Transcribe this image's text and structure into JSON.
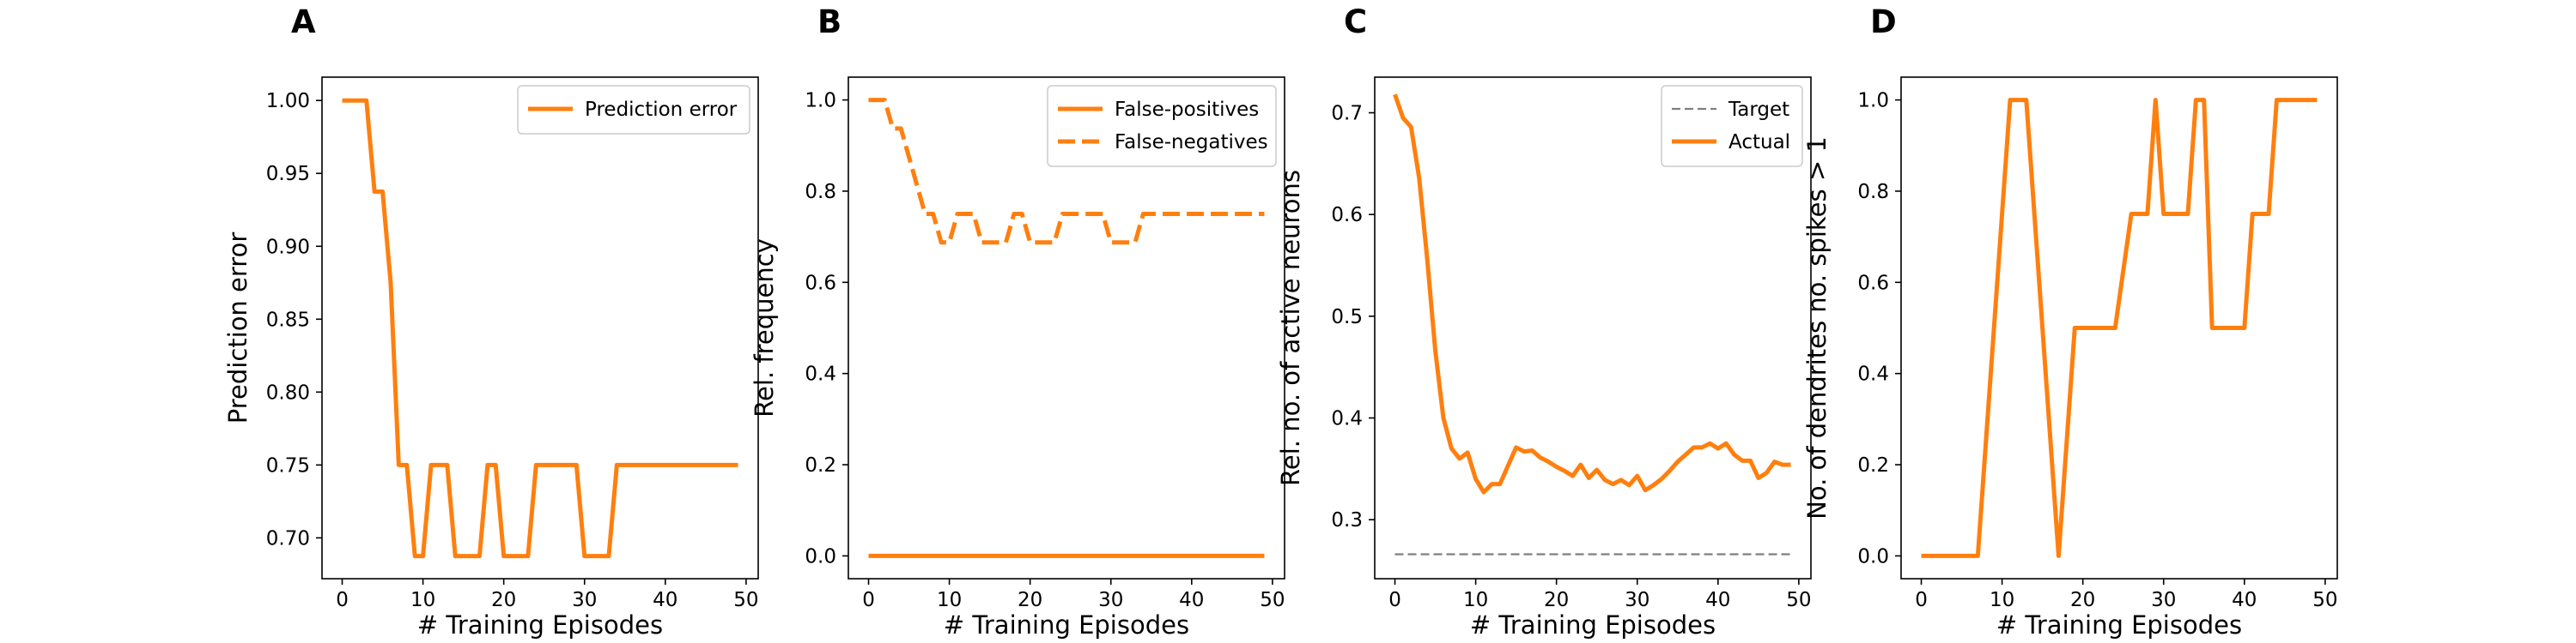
{
  "colors": {
    "series": "#ff7f0e",
    "target": "#7f7f7f",
    "axis": "#000000",
    "legend_border": "#cccccc"
  },
  "chart_data": [
    {
      "panel": "A",
      "type": "line",
      "xlabel": "# Training Episodes",
      "ylabel": "Prediction error",
      "xlim": [
        -2.5,
        51.5
      ],
      "ylim": [
        0.672,
        1.016
      ],
      "xticks": [
        0,
        10,
        20,
        30,
        40,
        50
      ],
      "yticks": [
        0.7,
        0.75,
        0.8,
        0.85,
        0.9,
        0.95,
        1.0
      ],
      "ytick_labels": [
        "0.70",
        "0.75",
        "0.80",
        "0.85",
        "0.90",
        "0.95",
        "1.00"
      ],
      "legend": "top-right",
      "series": [
        {
          "name": "Prediction error",
          "style": "solid",
          "x": [
            0,
            1,
            2,
            3,
            4,
            5,
            6,
            7,
            8,
            9,
            10,
            11,
            12,
            13,
            14,
            15,
            16,
            17,
            18,
            19,
            20,
            21,
            22,
            23,
            24,
            25,
            26,
            27,
            28,
            29,
            30,
            31,
            32,
            33,
            34,
            35,
            36,
            37,
            38,
            39,
            40,
            41,
            42,
            43,
            44,
            45,
            46,
            47,
            48,
            49
          ],
          "y": [
            1.0,
            1.0,
            1.0,
            1.0,
            0.9375,
            0.9375,
            0.875,
            0.75,
            0.75,
            0.6875,
            0.6875,
            0.75,
            0.75,
            0.75,
            0.6875,
            0.6875,
            0.6875,
            0.6875,
            0.75,
            0.75,
            0.6875,
            0.6875,
            0.6875,
            0.6875,
            0.75,
            0.75,
            0.75,
            0.75,
            0.75,
            0.75,
            0.6875,
            0.6875,
            0.6875,
            0.6875,
            0.75,
            0.75,
            0.75,
            0.75,
            0.75,
            0.75,
            0.75,
            0.75,
            0.75,
            0.75,
            0.75,
            0.75,
            0.75,
            0.75,
            0.75,
            0.75
          ]
        }
      ]
    },
    {
      "panel": "B",
      "type": "line",
      "xlabel": "# Training Episodes",
      "ylabel": "Rel. frequency",
      "xlim": [
        -2.5,
        51.5
      ],
      "ylim": [
        -0.05,
        1.05
      ],
      "xticks": [
        0,
        10,
        20,
        30,
        40,
        50
      ],
      "yticks": [
        0.0,
        0.2,
        0.4,
        0.6,
        0.8,
        1.0
      ],
      "ytick_labels": [
        "0.0",
        "0.2",
        "0.4",
        "0.6",
        "0.8",
        "1.0"
      ],
      "legend": "top-right",
      "series": [
        {
          "name": "False-positives",
          "style": "solid",
          "x": [
            0,
            49
          ],
          "y": [
            0.0,
            0.0
          ]
        },
        {
          "name": "False-negatives",
          "style": "dashed",
          "x": [
            0,
            1,
            2,
            3,
            4,
            5,
            6,
            7,
            8,
            9,
            10,
            11,
            12,
            13,
            14,
            15,
            16,
            17,
            18,
            19,
            20,
            21,
            22,
            23,
            24,
            25,
            26,
            27,
            28,
            29,
            30,
            31,
            32,
            33,
            34,
            35,
            36,
            37,
            38,
            39,
            40,
            41,
            42,
            43,
            44,
            45,
            46,
            47,
            48,
            49
          ],
          "y": [
            1.0,
            1.0,
            1.0,
            0.9375,
            0.9375,
            0.875,
            0.8125,
            0.75,
            0.75,
            0.6875,
            0.6875,
            0.75,
            0.75,
            0.75,
            0.6875,
            0.6875,
            0.6875,
            0.6875,
            0.75,
            0.75,
            0.6875,
            0.6875,
            0.6875,
            0.6875,
            0.75,
            0.75,
            0.75,
            0.75,
            0.75,
            0.75,
            0.6875,
            0.6875,
            0.6875,
            0.6875,
            0.75,
            0.75,
            0.75,
            0.75,
            0.75,
            0.75,
            0.75,
            0.75,
            0.75,
            0.75,
            0.75,
            0.75,
            0.75,
            0.75,
            0.75,
            0.75
          ]
        }
      ]
    },
    {
      "panel": "C",
      "type": "line",
      "xlabel": "# Training Episodes",
      "ylabel": "Rel. no. of active neurons",
      "xlim": [
        -2.5,
        51.5
      ],
      "ylim": [
        0.242,
        0.735
      ],
      "xticks": [
        0,
        10,
        20,
        30,
        40,
        50
      ],
      "yticks": [
        0.3,
        0.4,
        0.5,
        0.6,
        0.7
      ],
      "ytick_labels": [
        "0.3",
        "0.4",
        "0.5",
        "0.6",
        "0.7"
      ],
      "legend": "top-right",
      "series": [
        {
          "name": "Target",
          "style": "dashed-thin",
          "x": [
            0,
            49
          ],
          "y": [
            0.266,
            0.266
          ]
        },
        {
          "name": "Actual",
          "style": "solid",
          "x": [
            0,
            1,
            2,
            3,
            4,
            5,
            6,
            7,
            8,
            9,
            10,
            11,
            12,
            13,
            14,
            15,
            16,
            17,
            18,
            19,
            20,
            21,
            22,
            23,
            24,
            25,
            26,
            27,
            28,
            29,
            30,
            31,
            32,
            33,
            34,
            35,
            36,
            37,
            38,
            39,
            40,
            41,
            42,
            43,
            44,
            45,
            46,
            47,
            48,
            49
          ],
          "y": [
            0.718,
            0.695,
            0.686,
            0.636,
            0.556,
            0.466,
            0.4,
            0.37,
            0.36,
            0.366,
            0.34,
            0.327,
            0.335,
            0.335,
            0.353,
            0.371,
            0.367,
            0.368,
            0.361,
            0.357,
            0.352,
            0.348,
            0.343,
            0.354,
            0.341,
            0.349,
            0.339,
            0.335,
            0.339,
            0.334,
            0.343,
            0.329,
            0.334,
            0.34,
            0.348,
            0.357,
            0.364,
            0.371,
            0.371,
            0.375,
            0.37,
            0.375,
            0.364,
            0.358,
            0.358,
            0.341,
            0.346,
            0.357,
            0.354,
            0.354
          ]
        }
      ]
    },
    {
      "panel": "D",
      "type": "line",
      "xlabel": "# Training Episodes",
      "ylabel": "No. of dendrites no. spikes > 1",
      "xlim": [
        -2.5,
        51.5
      ],
      "ylim": [
        -0.05,
        1.05
      ],
      "xticks": [
        0,
        10,
        20,
        30,
        40,
        50
      ],
      "yticks": [
        0.0,
        0.2,
        0.4,
        0.6,
        0.8,
        1.0
      ],
      "ytick_labels": [
        "0.0",
        "0.2",
        "0.4",
        "0.6",
        "0.8",
        "1.0"
      ],
      "legend": "none",
      "series": [
        {
          "style": "solid",
          "x": [
            0,
            7,
            11,
            13,
            17,
            19,
            24,
            26,
            28,
            29,
            30,
            33,
            34,
            35,
            36,
            40,
            41,
            43,
            44,
            49
          ],
          "y": [
            0.0,
            0.0,
            1.0,
            1.0,
            0.0,
            0.5,
            0.5,
            0.75,
            0.75,
            1.0,
            0.75,
            0.75,
            1.0,
            1.0,
            0.5,
            0.5,
            0.75,
            0.75,
            1.0,
            1.0
          ]
        }
      ]
    }
  ]
}
